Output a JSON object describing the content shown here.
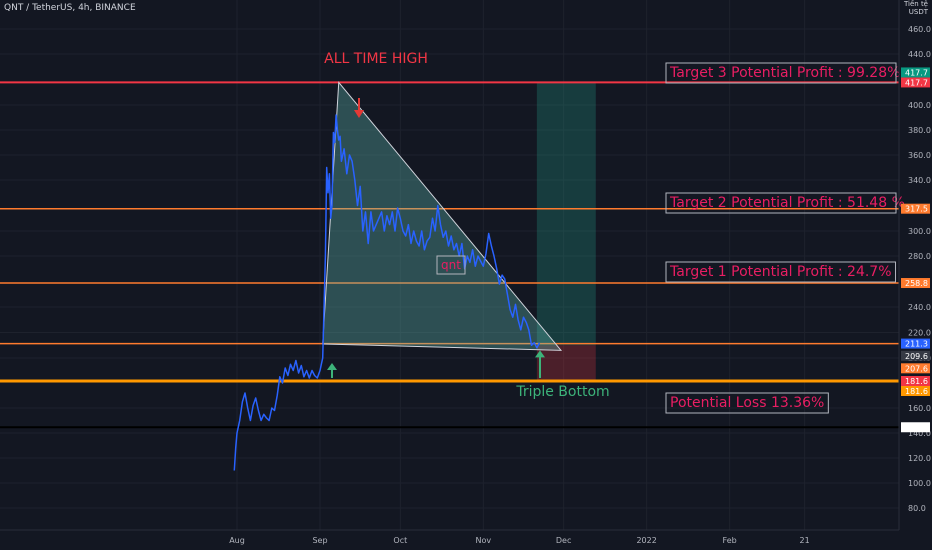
{
  "header": {
    "symbol": "QNT / TetherUS, 4h, BINANCE",
    "unit_label": "Tiền tệ USDT"
  },
  "colors": {
    "background": "#131722",
    "price_line": "#2962ff",
    "grid": "#1e222d",
    "red_line": "#f23645",
    "orange_line": "#ff7b2e",
    "support_line": "#ff9800",
    "black_line": "#000000",
    "annotation_text": "#e91e63",
    "triangle_fill": "#5fb8b0",
    "green_zone": "#22ab94",
    "red_zone": "#f23645",
    "green_arrow": "#3db37a",
    "red_arrow": "#e53935",
    "all_time_high_text": "#f23645",
    "triple_bottom_text": "#3db37a"
  },
  "chart_data": {
    "type": "line",
    "title": "QNT / TetherUS, 4h, BINANCE",
    "ylim": [
      70,
      480
    ],
    "y_ticks": [
      80.0,
      100.0,
      120.0,
      140.0,
      160.0,
      200.0,
      220.0,
      240.0,
      280.0,
      300.0,
      340.0,
      360.0,
      380.0,
      400.0,
      440.0,
      460.0
    ],
    "x_ticks": [
      "Aug",
      "Sep",
      "Oct",
      "Nov",
      "Dec",
      "2022",
      "Feb",
      "21"
    ],
    "x_tick_days": [
      31,
      62,
      92,
      123,
      153,
      184,
      215,
      243
    ],
    "series": [
      {
        "points": [
          [
            30,
            110
          ],
          [
            30.5,
            128
          ],
          [
            31,
            140
          ],
          [
            32,
            150
          ],
          [
            33,
            165
          ],
          [
            34,
            172
          ],
          [
            35,
            160
          ],
          [
            36,
            150
          ],
          [
            37,
            162
          ],
          [
            38,
            168
          ],
          [
            39,
            158
          ],
          [
            40,
            150
          ],
          [
            41,
            155
          ],
          [
            42,
            152
          ],
          [
            43,
            150
          ],
          [
            44,
            160
          ],
          [
            45,
            158
          ],
          [
            46,
            170
          ],
          [
            47,
            185
          ],
          [
            48,
            180
          ],
          [
            49,
            192
          ],
          [
            50,
            186
          ],
          [
            51,
            195
          ],
          [
            52,
            190
          ],
          [
            53,
            198
          ],
          [
            54,
            188
          ],
          [
            55,
            194
          ],
          [
            56,
            185
          ],
          [
            57,
            190
          ],
          [
            58,
            184
          ],
          [
            59,
            190
          ],
          [
            60,
            186
          ],
          [
            61,
            184
          ],
          [
            62,
            190
          ],
          [
            63,
            200
          ],
          [
            64,
            280
          ],
          [
            64.5,
            350
          ],
          [
            65,
            330
          ],
          [
            65.5,
            345
          ],
          [
            66,
            310
          ],
          [
            66.5,
            320
          ],
          [
            67,
            378
          ],
          [
            67.5,
            370
          ],
          [
            68,
            392
          ],
          [
            68.5,
            380
          ],
          [
            69,
            372
          ],
          [
            69.5,
            375
          ],
          [
            70,
            355
          ],
          [
            71,
            365
          ],
          [
            72,
            345
          ],
          [
            73,
            360
          ],
          [
            74,
            355
          ],
          [
            75,
            340
          ],
          [
            76,
            320
          ],
          [
            77,
            335
          ],
          [
            78,
            300
          ],
          [
            79,
            315
          ],
          [
            80,
            290
          ],
          [
            81,
            315
          ],
          [
            82,
            300
          ],
          [
            83,
            305
          ],
          [
            84,
            310
          ],
          [
            85,
            315
          ],
          [
            86,
            300
          ],
          [
            87,
            312
          ],
          [
            88,
            305
          ],
          [
            89,
            315
          ],
          [
            90,
            300
          ],
          [
            91,
            318
          ],
          [
            92,
            310
          ],
          [
            93,
            300
          ],
          [
            94,
            296
          ],
          [
            95,
            305
          ],
          [
            96,
            290
          ],
          [
            97,
            300
          ],
          [
            98,
            292
          ],
          [
            99,
            288
          ],
          [
            100,
            300
          ],
          [
            101,
            285
          ],
          [
            102,
            292
          ],
          [
            103,
            295
          ],
          [
            104,
            310
          ],
          [
            105,
            300
          ],
          [
            106,
            320
          ],
          [
            107,
            305
          ],
          [
            108,
            295
          ],
          [
            109,
            300
          ],
          [
            110,
            288
          ],
          [
            111,
            296
          ],
          [
            112,
            285
          ],
          [
            113,
            290
          ],
          [
            114,
            280
          ],
          [
            115,
            290
          ],
          [
            116,
            270
          ],
          [
            117,
            280
          ],
          [
            118,
            275
          ],
          [
            119,
            285
          ],
          [
            120,
            272
          ],
          [
            121,
            280
          ],
          [
            122,
            276
          ],
          [
            123,
            272
          ],
          [
            124,
            282
          ],
          [
            125,
            298
          ],
          [
            126,
            288
          ],
          [
            127,
            280
          ],
          [
            128,
            270
          ],
          [
            129,
            258
          ],
          [
            130,
            265
          ],
          [
            131,
            262
          ],
          [
            132,
            250
          ],
          [
            133,
            238
          ],
          [
            134,
            232
          ],
          [
            135,
            242
          ],
          [
            136,
            230
          ],
          [
            137,
            222
          ],
          [
            138,
            232
          ],
          [
            139,
            228
          ],
          [
            140,
            222
          ],
          [
            141,
            210
          ],
          [
            142,
            212
          ],
          [
            143,
            208
          ],
          [
            144,
            212
          ]
        ]
      }
    ],
    "horizontal_levels": [
      {
        "value": 417.7,
        "color": "red"
      },
      {
        "value": 317.5,
        "color": "orange"
      },
      {
        "value": 258.8,
        "color": "orange"
      },
      {
        "value": 211.3,
        "color": "orange"
      },
      {
        "value": 181.6,
        "color": "orange-thick"
      },
      {
        "value": 144.6,
        "color": "black"
      }
    ],
    "price_tags": [
      {
        "label": "417.7",
        "value": 417.7,
        "bg": "#f23645",
        "offset": 0
      },
      {
        "label": "417.7",
        "value": 417.7,
        "bg": "#089981",
        "offset": -1
      },
      {
        "label": "317.5",
        "value": 317.5,
        "bg": "#ff7b2e",
        "offset": 0
      },
      {
        "label": "258.8",
        "value": 258.8,
        "bg": "#ff7b2e",
        "offset": 0
      },
      {
        "label": "211.3",
        "value": 211.3,
        "bg": "#2962ff",
        "offset": 0
      },
      {
        "label": "209.6",
        "value": 209.6,
        "bg": "#363a45",
        "offset": 1
      },
      {
        "label": "207.6",
        "value": 207.6,
        "bg": "#ff7b2e",
        "offset": 2
      },
      {
        "label": "181.6",
        "value": 181.6,
        "bg": "#f23645",
        "offset": 0
      },
      {
        "label": "181.6",
        "value": 181.6,
        "bg": "#ff9800",
        "offset": 1
      },
      {
        "label": "144.6",
        "value": 144.6,
        "bg": "#ffffff",
        "offset": 0
      }
    ],
    "triangle": [
      [
        63,
        211
      ],
      [
        69,
        417.7
      ],
      [
        152,
        206
      ]
    ],
    "long_position": {
      "x_start": 143,
      "x_end": 165,
      "entry": 210,
      "target": 417.7,
      "stop": 181.6
    },
    "annotations": [
      {
        "text": "Target 3 Potential Profit : 99.28%",
        "value": 417.7
      },
      {
        "text": "Target 2 Potential Profit : 51.48 %",
        "value": 317.5
      },
      {
        "text": "Target 1 Potential Profit : 24.7%",
        "value": 258.8
      },
      {
        "text": "Potential Loss 13.36%",
        "value": 181.6
      }
    ],
    "label_all_time_high": "ALL TIME HIGH",
    "label_triple_bottom": "Triple Bottom",
    "label_qnt": "qnt"
  }
}
